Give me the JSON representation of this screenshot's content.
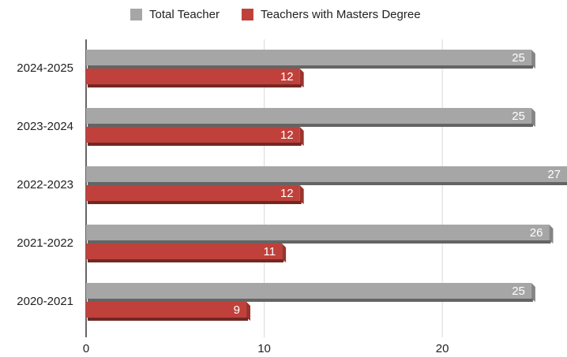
{
  "chart_data": {
    "type": "bar",
    "orientation": "horizontal",
    "categories": [
      "2024-2025",
      "2023-2024",
      "2022-2023",
      "2021-2022",
      "2020-2021"
    ],
    "series": [
      {
        "name": "Total Teacher",
        "color": "#a6a6a6",
        "values": [
          25,
          25,
          27,
          26,
          25
        ]
      },
      {
        "name": "Teachers with Masters Degree",
        "color": "#c0413b",
        "values": [
          12,
          12,
          12,
          11,
          9
        ]
      }
    ],
    "xlim": [
      0,
      27
    ],
    "xticks": [
      0,
      10,
      20
    ],
    "grid": true,
    "legend": "top"
  }
}
